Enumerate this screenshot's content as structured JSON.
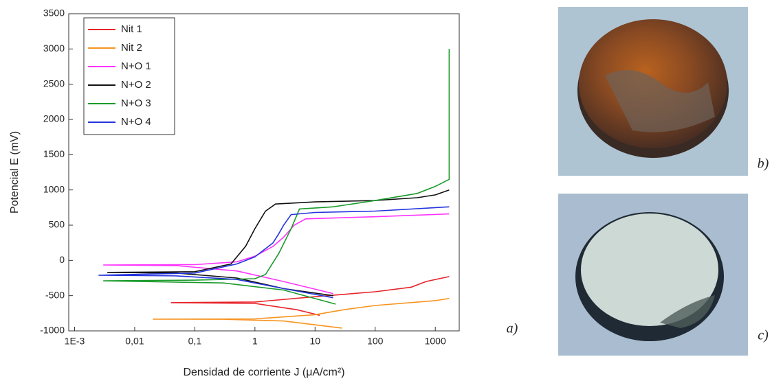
{
  "chart_data": {
    "type": "line",
    "xlabel": "Densidad de corriente J (μA/cm²)",
    "ylabel": "Potencial E (mV)",
    "xscale": "log",
    "xlim": [
      0.0008,
      2500
    ],
    "xticks": [
      {
        "value": 0.001,
        "label": "1E-3"
      },
      {
        "value": 0.01,
        "label": "0,01"
      },
      {
        "value": 0.1,
        "label": "0,1"
      },
      1,
      10,
      100,
      1000
    ],
    "ylim": [
      -1000,
      3500
    ],
    "yticks": [
      -1000,
      -500,
      0,
      500,
      1000,
      1500,
      2000,
      2500,
      3000,
      3500
    ],
    "legend": "upper left",
    "series": [
      {
        "name": "Nit 1",
        "color": "#e8232a",
        "x": [
          12,
          5,
          1,
          0.04,
          1,
          10,
          100,
          400,
          700,
          1700
        ],
        "values": [
          -780,
          -700,
          -610,
          -600,
          -590,
          -515,
          -445,
          -380,
          -300,
          -230
        ]
      },
      {
        "name": "Nit 2",
        "color": "#f7931e",
        "x": [
          28,
          3,
          0.3,
          0.02,
          1,
          10,
          30,
          100,
          1000,
          1700
        ],
        "values": [
          -960,
          -860,
          -835,
          -833,
          -830,
          -770,
          -700,
          -640,
          -570,
          -540
        ]
      },
      {
        "name": "N+O 1",
        "color": "#ff33ff",
        "x": [
          20,
          3,
          0.5,
          0.05,
          0.003,
          0.1,
          0.5,
          1,
          2,
          3,
          4.5,
          7,
          100,
          1700
        ],
        "values": [
          -470,
          -300,
          -150,
          -75,
          -65,
          -60,
          -20,
          60,
          200,
          330,
          500,
          590,
          620,
          660
        ]
      },
      {
        "name": "N+O 2",
        "color": "#111111",
        "x": [
          20,
          3,
          0.5,
          0.05,
          0.0035,
          0.1,
          0.4,
          0.7,
          1,
          1.5,
          2.2,
          10,
          100,
          500,
          1000,
          1700
        ],
        "values": [
          -500,
          -400,
          -250,
          -180,
          -170,
          -160,
          -50,
          200,
          450,
          700,
          800,
          830,
          850,
          890,
          930,
          1000
        ]
      },
      {
        "name": "N+O 3",
        "color": "#1a9a2a",
        "x": [
          22,
          3,
          0.3,
          0.003,
          0.1,
          1,
          1.5,
          2.5,
          4,
          5.5,
          20,
          100,
          500,
          1000,
          1700,
          1700
        ],
        "values": [
          -620,
          -420,
          -320,
          -290,
          -280,
          -260,
          -200,
          100,
          450,
          730,
          760,
          850,
          950,
          1050,
          1150,
          3000
        ]
      },
      {
        "name": "N+O 4",
        "color": "#2233dd",
        "x": [
          20,
          3,
          0.5,
          0.05,
          0.0025,
          0.1,
          0.5,
          1,
          2,
          2.5,
          3,
          4,
          10,
          100,
          1700
        ],
        "values": [
          -530,
          -400,
          -270,
          -220,
          -210,
          -180,
          -50,
          50,
          250,
          380,
          500,
          650,
          680,
          700,
          760
        ]
      }
    ]
  },
  "panel_labels": [
    "a)",
    "b)",
    "c)"
  ]
}
